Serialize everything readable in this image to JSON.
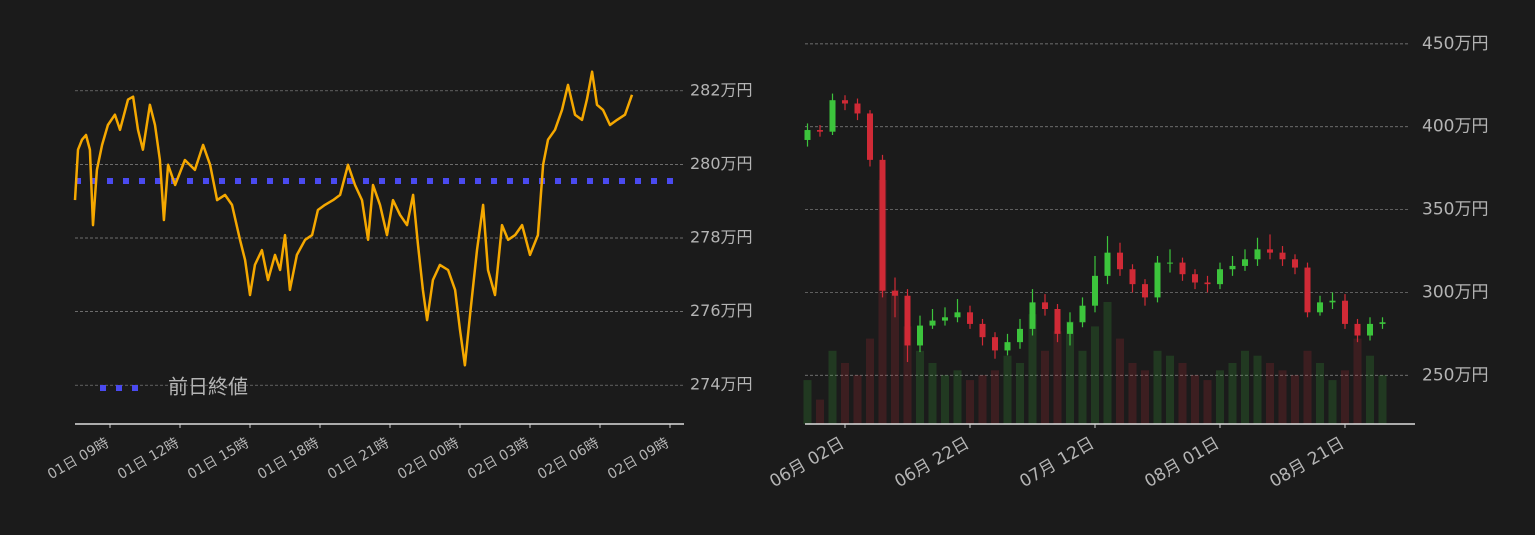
{
  "chart_data": [
    {
      "type": "line",
      "x": [
        7.5,
        7.63,
        7.8,
        7.97,
        8.14,
        8.27,
        8.44,
        8.66,
        8.91,
        9.21,
        9.43,
        9.77,
        9.99,
        10.2,
        10.41,
        10.71,
        10.93,
        11.14,
        11.31,
        11.49,
        11.79,
        12.21,
        12.64,
        12.99,
        13.29,
        13.59,
        13.93,
        14.23,
        14.57,
        14.79,
        15.0,
        15.21,
        15.51,
        15.77,
        16.07,
        16.29,
        16.5,
        16.71,
        17.01,
        17.36,
        17.66,
        17.91,
        18.21,
        18.56,
        18.86,
        19.2,
        19.5,
        19.8,
        20.06,
        20.27,
        20.57,
        20.87,
        21.13,
        21.43,
        21.73,
        21.99,
        22.2,
        22.41,
        22.59,
        22.84,
        23.14,
        23.49,
        23.79,
        24.0,
        24.21,
        24.43,
        24.73,
        24.99,
        25.2,
        25.5,
        25.8,
        26.06,
        26.36,
        26.66,
        27.0,
        27.34,
        27.56,
        27.77,
        28.07,
        28.37,
        28.63,
        28.93,
        29.23,
        29.44,
        29.66,
        29.87,
        30.13,
        30.43,
        30.73,
        31.07,
        31.37
      ],
      "series": [
        {
          "color": "#f5a800",
          "values": [
            279.03,
            280.4,
            280.67,
            280.8,
            280.4,
            278.35,
            279.85,
            280.53,
            281.07,
            281.35,
            280.94,
            281.76,
            281.84,
            280.94,
            280.4,
            281.62,
            281.07,
            280.12,
            278.49,
            279.99,
            279.44,
            280.12,
            279.85,
            280.53,
            279.99,
            279.03,
            279.17,
            278.9,
            277.95,
            277.4,
            276.45,
            277.27,
            277.67,
            276.86,
            277.54,
            277.13,
            278.08,
            276.59,
            277.54,
            277.95,
            278.08,
            278.76,
            278.9,
            279.03,
            279.17,
            279.99,
            279.44,
            279.03,
            277.95,
            279.44,
            278.9,
            278.08,
            279.03,
            278.63,
            278.35,
            279.17,
            277.81,
            276.59,
            275.77,
            276.86,
            277.27,
            277.13,
            276.59,
            275.5,
            274.54,
            275.9,
            277.67,
            278.9,
            277.13,
            276.45,
            278.35,
            277.95,
            278.08,
            278.35,
            277.54,
            278.08,
            279.99,
            280.67,
            280.94,
            281.48,
            282.16,
            281.35,
            281.21,
            281.76,
            282.52,
            281.62,
            281.48,
            281.07,
            281.21,
            281.35,
            281.89
          ]
        }
      ],
      "reference_line": {
        "name": "前日終値",
        "value": 279.55,
        "color": "#4a4af0"
      },
      "xlim": [
        7.5,
        33.6
      ],
      "xticks": [
        {
          "value": 9,
          "label": "01日 09時"
        },
        {
          "value": 12,
          "label": "01日 12時"
        },
        {
          "value": 15,
          "label": "01日 15時"
        },
        {
          "value": 18,
          "label": "01日 18時"
        },
        {
          "value": 21,
          "label": "01日 21時"
        },
        {
          "value": 24,
          "label": "02日 00時"
        },
        {
          "value": 27,
          "label": "02日 03時"
        },
        {
          "value": 30,
          "label": "02日 06時"
        },
        {
          "value": 33,
          "label": "02日 09時"
        }
      ],
      "ylim": [
        273,
        283
      ],
      "yticks": [
        {
          "value": 274,
          "label": "274万円"
        },
        {
          "value": 276,
          "label": "276万円"
        },
        {
          "value": 278,
          "label": "278万円"
        },
        {
          "value": 280,
          "label": "280万円"
        },
        {
          "value": 282,
          "label": "282万円"
        }
      ],
      "grid": true
    },
    {
      "type": "candlestick",
      "x": [
        -6,
        -4,
        -2,
        0,
        2,
        4,
        6,
        8,
        10,
        12,
        14,
        16,
        18,
        20,
        22,
        24,
        26,
        28,
        30,
        32,
        34,
        36,
        38,
        40,
        42,
        44,
        46,
        48,
        50,
        52,
        54,
        56,
        58,
        60,
        62,
        64,
        66,
        68,
        70,
        72,
        74,
        76,
        78,
        80,
        82,
        84,
        86
      ],
      "open": [
        392,
        398,
        397,
        416,
        414,
        408,
        380,
        301,
        298,
        268,
        280,
        283,
        285,
        288,
        281,
        273,
        265,
        270,
        278,
        294,
        290,
        275,
        282,
        292,
        310,
        324,
        314,
        305,
        297,
        318,
        318,
        311,
        306,
        305,
        314,
        316,
        320,
        326,
        324,
        320,
        315,
        288,
        294,
        295,
        281,
        274,
        281
      ],
      "high": [
        402,
        401,
        420,
        419,
        417,
        410,
        383,
        309,
        302,
        286,
        290,
        291,
        296,
        292,
        284,
        276,
        275,
        284,
        302,
        299,
        293,
        288,
        297,
        322,
        334,
        330,
        317,
        308,
        322,
        326,
        321,
        314,
        310,
        318,
        322,
        326,
        333,
        335,
        328,
        323,
        318,
        298,
        300,
        299,
        284,
        285,
        285
      ],
      "low": [
        388,
        394,
        395,
        410,
        404,
        376,
        297,
        285,
        258,
        264,
        278,
        280,
        282,
        278,
        268,
        260,
        262,
        266,
        274,
        286,
        270,
        268,
        279,
        288,
        305,
        310,
        300,
        292,
        294,
        312,
        307,
        302,
        300,
        302,
        310,
        313,
        316,
        320,
        316,
        311,
        285,
        286,
        290,
        278,
        270,
        271,
        278
      ],
      "close": [
        398,
        397,
        416,
        414,
        408,
        380,
        301,
        298,
        268,
        280,
        283,
        285,
        288,
        281,
        273,
        265,
        270,
        278,
        294,
        290,
        275,
        282,
        292,
        310,
        324,
        314,
        305,
        297,
        318,
        318,
        311,
        306,
        305,
        314,
        316,
        320,
        326,
        324,
        320,
        315,
        288,
        294,
        295,
        281,
        274,
        281,
        282
      ],
      "volume": [
        18,
        10,
        30,
        25,
        20,
        35,
        100,
        55,
        40,
        30,
        25,
        20,
        22,
        18,
        20,
        22,
        28,
        25,
        45,
        30,
        38,
        42,
        30,
        40,
        50,
        35,
        25,
        22,
        30,
        28,
        25,
        20,
        18,
        22,
        25,
        30,
        28,
        25,
        22,
        20,
        30,
        25,
        18,
        22,
        35,
        28,
        20
      ],
      "up_color": "#3cc43c",
      "down_color": "#d02a36",
      "xlim": [
        -6.4,
        91.2
      ],
      "xticks": [
        {
          "value": 0,
          "label": "06月 02日"
        },
        {
          "value": 20,
          "label": "06月 22日"
        },
        {
          "value": 40,
          "label": "07月 12日"
        },
        {
          "value": 60,
          "label": "08月 01日"
        },
        {
          "value": 80,
          "label": "08月 21日"
        }
      ],
      "ylim": [
        220,
        465
      ],
      "yticks": [
        {
          "value": 250,
          "label": "250万円"
        },
        {
          "value": 300,
          "label": "300万円"
        },
        {
          "value": 350,
          "label": "350万円"
        },
        {
          "value": 400,
          "label": "400万円"
        },
        {
          "value": 450,
          "label": "450万円"
        }
      ],
      "grid": true
    }
  ]
}
